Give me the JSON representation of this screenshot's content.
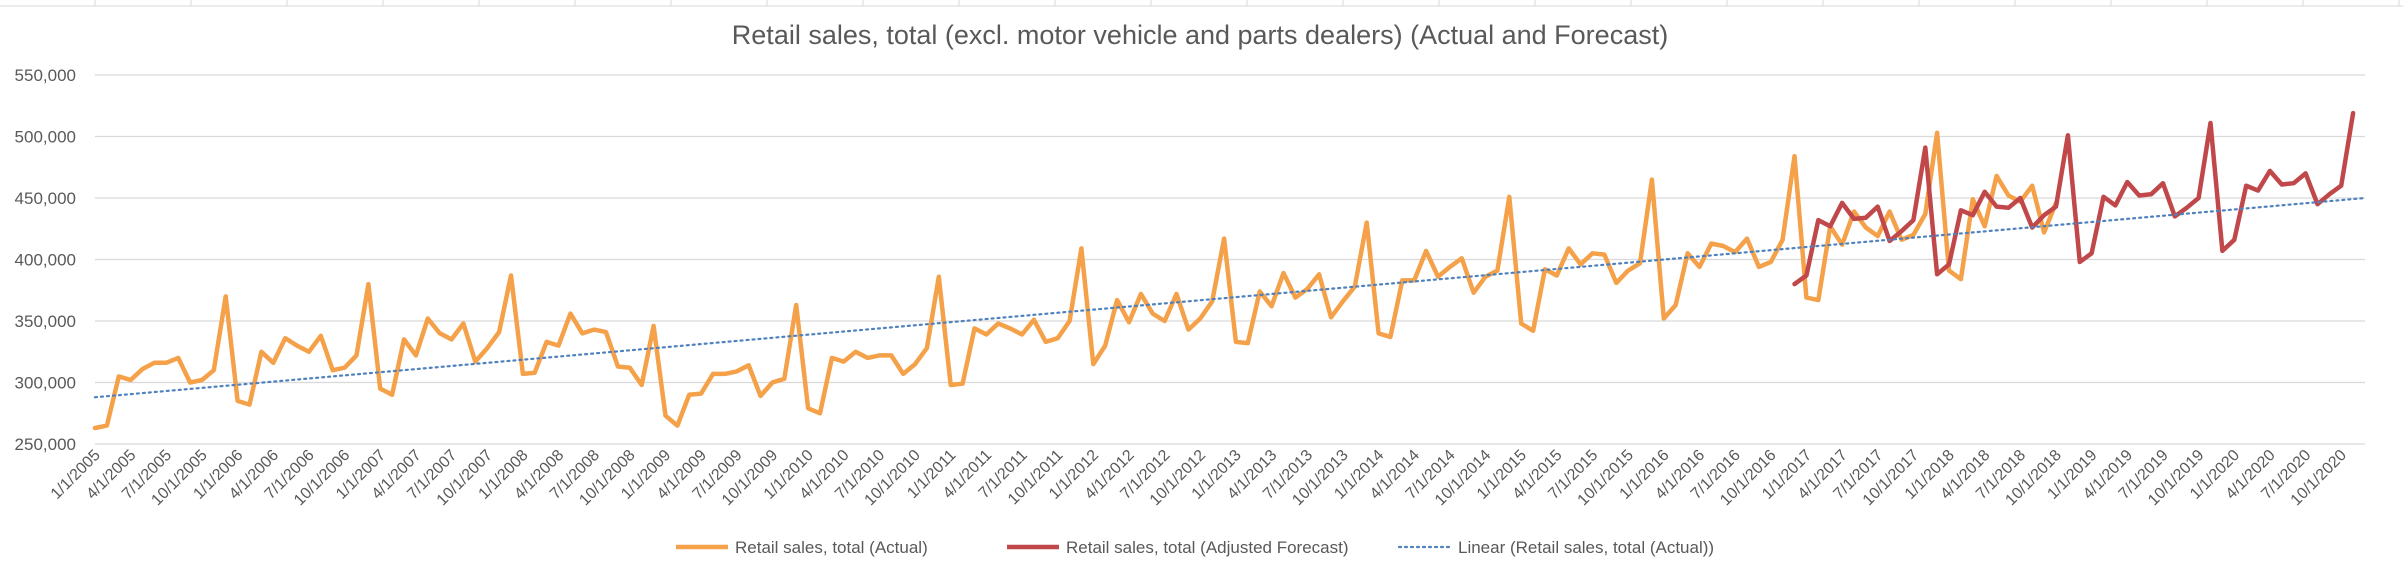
{
  "chart_data": {
    "type": "line",
    "title": "Retail sales, total (excl. motor vehicle and parts dealers) (Actual and Forecast)",
    "xlabel": "",
    "ylabel": "",
    "ylim": [
      250000,
      550000
    ],
    "y_ticks": [
      "250,000",
      "300,000",
      "350,000",
      "400,000",
      "450,000",
      "500,000",
      "550,000"
    ],
    "x_tick_labels": [
      "1/1/2005",
      "4/1/2005",
      "7/1/2005",
      "10/1/2005",
      "1/1/2006",
      "4/1/2006",
      "7/1/2006",
      "10/1/2006",
      "1/1/2007",
      "4/1/2007",
      "7/1/2007",
      "10/1/2007",
      "1/1/2008",
      "4/1/2008",
      "7/1/2008",
      "10/1/2008",
      "1/1/2009",
      "4/1/2009",
      "7/1/2009",
      "10/1/2009",
      "1/1/2010",
      "4/1/2010",
      "7/1/2010",
      "10/1/2010",
      "1/1/2011",
      "4/1/2011",
      "7/1/2011",
      "10/1/2011",
      "1/1/2012",
      "4/1/2012",
      "7/1/2012",
      "10/1/2012",
      "1/1/2013",
      "4/1/2013",
      "7/1/2013",
      "10/1/2013",
      "1/1/2014",
      "4/1/2014",
      "7/1/2014",
      "10/1/2014",
      "1/1/2015",
      "4/1/2015",
      "7/1/2015",
      "10/1/2015",
      "1/1/2016",
      "4/1/2016",
      "7/1/2016",
      "10/1/2016",
      "1/1/2017",
      "4/1/2017",
      "7/1/2017",
      "10/1/2017",
      "1/1/2018",
      "4/1/2018",
      "7/1/2018",
      "10/1/2018",
      "1/1/2019",
      "4/1/2019",
      "7/1/2019",
      "10/1/2019",
      "1/1/2020",
      "4/1/2020",
      "7/1/2020",
      "10/1/2020"
    ],
    "gridlines": "horizontal",
    "legend_position": "bottom",
    "series": [
      {
        "name": "Retail sales, total (Actual)",
        "color": "#f4a14a",
        "start": "1/1/2005",
        "values": [
          263000,
          265000,
          305000,
          302000,
          311000,
          316000,
          316000,
          320000,
          300000,
          302000,
          310000,
          370000,
          285000,
          282000,
          325000,
          316000,
          336000,
          330000,
          325000,
          338000,
          310000,
          312000,
          322000,
          380000,
          295000,
          290000,
          335000,
          322000,
          352000,
          340000,
          335000,
          348000,
          317000,
          328000,
          341000,
          387000,
          307000,
          308000,
          333000,
          330000,
          356000,
          340000,
          343000,
          341000,
          313000,
          312000,
          298000,
          346000,
          273000,
          265000,
          290000,
          291000,
          307000,
          307000,
          309000,
          314000,
          289000,
          300000,
          303000,
          363000,
          279000,
          275000,
          320000,
          317000,
          325000,
          320000,
          322000,
          322000,
          307000,
          315000,
          328000,
          386000,
          298000,
          299000,
          344000,
          339000,
          348000,
          344000,
          339000,
          351000,
          333000,
          336000,
          350000,
          409000,
          315000,
          330000,
          367000,
          349000,
          372000,
          356000,
          350000,
          372000,
          343000,
          352000,
          366000,
          417000,
          333000,
          332000,
          374000,
          362000,
          389000,
          369000,
          376000,
          388000,
          353000,
          366000,
          378000,
          430000,
          340000,
          337000,
          383000,
          383000,
          407000,
          386000,
          394000,
          401000,
          373000,
          386000,
          391000,
          451000,
          348000,
          342000,
          392000,
          387000,
          409000,
          396000,
          405000,
          404000,
          381000,
          391000,
          397000,
          465000,
          352000,
          363000,
          405000,
          394000,
          413000,
          411000,
          406000,
          417000,
          394000,
          398000,
          416000,
          484000,
          369000,
          367000,
          427000,
          412000,
          439000,
          426000,
          419000,
          439000,
          416000,
          420000,
          437000,
          503000,
          391000,
          384000,
          449000,
          427000,
          468000,
          452000,
          447000,
          460000,
          422000,
          446000
        ]
      },
      {
        "name": "Retail sales, total (Adjusted Forecast)",
        "color": "#c0484a",
        "start": "12/1/2016",
        "values": [
          380000,
          387000,
          432000,
          427000,
          446000,
          433000,
          434000,
          443000,
          415000,
          423000,
          432000,
          491000,
          388000,
          396000,
          440000,
          436000,
          455000,
          443000,
          442000,
          450000,
          426000,
          436000,
          443000,
          501000,
          398000,
          405000,
          451000,
          444000,
          463000,
          452000,
          453000,
          462000,
          435000,
          442000,
          450000,
          511000,
          407000,
          416000,
          460000,
          456000,
          472000,
          461000,
          462000,
          470000,
          445000,
          453000,
          460000,
          519000
        ]
      },
      {
        "name": "Linear (Retail sales, total (Actual))",
        "color": "#4f81bd",
        "trendline": true,
        "start_value": 288000,
        "end_value": 450000
      }
    ]
  }
}
